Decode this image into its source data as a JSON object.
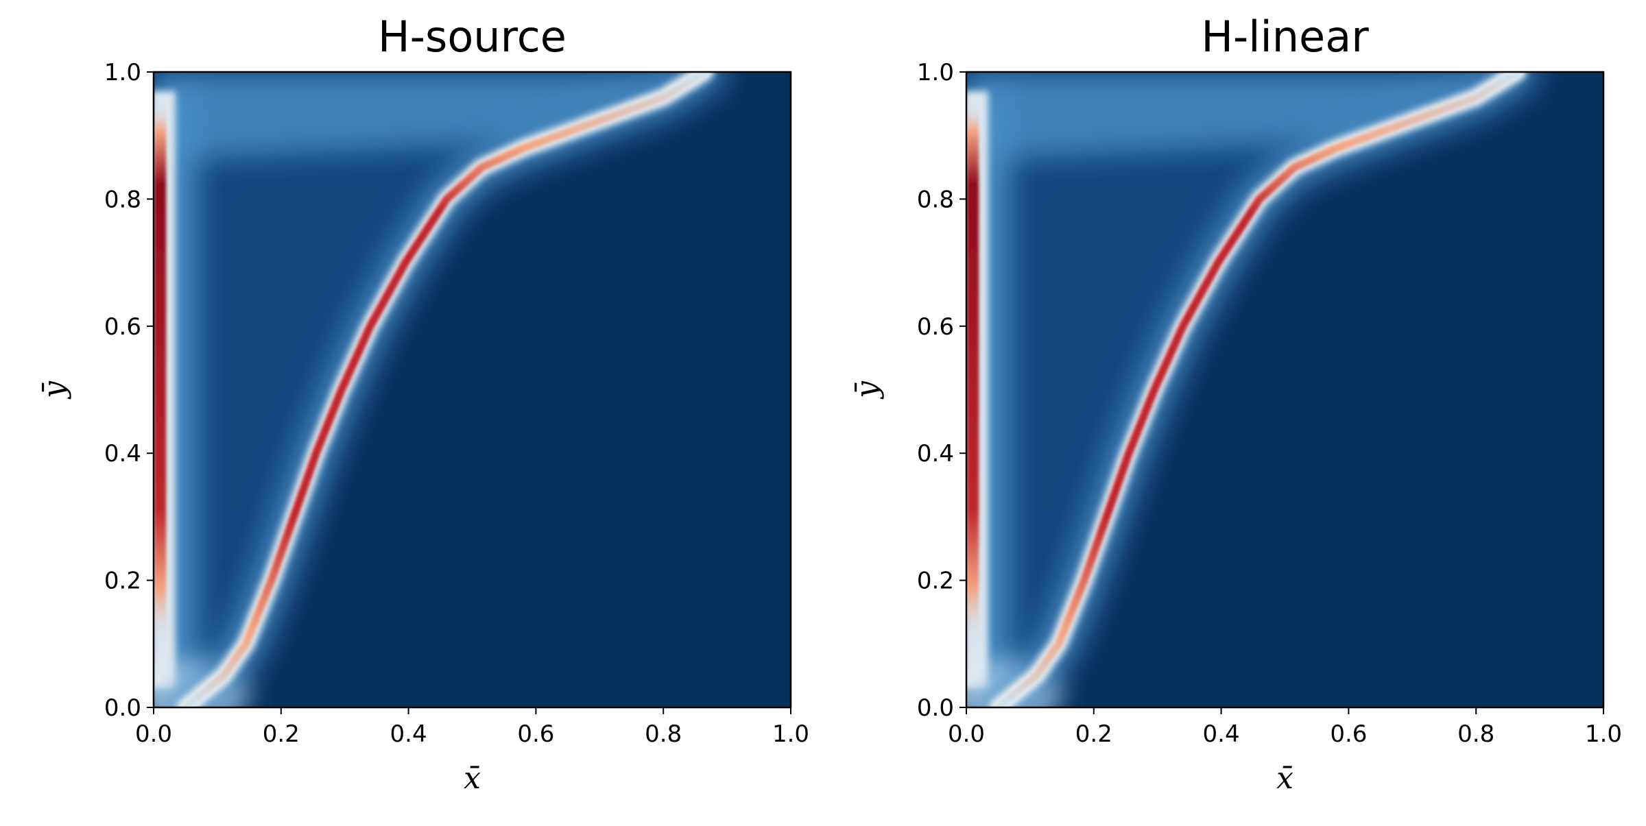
{
  "colors": {
    "background_field": "#08305e",
    "plume_dark": "#1b5a9c",
    "plume_mid": "#4a90c8",
    "plume_light": "#cde3f1",
    "ridge_white": "#f7f7f7",
    "ridge_peach": "#f4a582",
    "ridge_red": "#c0272d",
    "ridge_deep_red": "#8f0c1e"
  },
  "colormap": "RdBu_r",
  "chart_data": [
    {
      "type": "heatmap",
      "title": "H-source",
      "xlabel": "x̄",
      "ylabel": "ȳ",
      "xlim": [
        0.0,
        1.0
      ],
      "ylim": [
        0.0,
        1.0
      ],
      "xticks": [
        "0.0",
        "0.2",
        "0.4",
        "0.6",
        "0.8",
        "1.0"
      ],
      "yticks": [
        "0.0",
        "0.2",
        "0.4",
        "0.6",
        "0.8",
        "1.0"
      ],
      "grid": false,
      "features": {
        "wall_ridge_x": 0.01,
        "wall_ridge_y_range": [
          0.1,
          0.95
        ],
        "front_curve": {
          "y": [
            0.0,
            0.05,
            0.1,
            0.15,
            0.2,
            0.3,
            0.4,
            0.5,
            0.6,
            0.7,
            0.8,
            0.85,
            0.88,
            0.92,
            0.96,
            1.0
          ],
          "x": [
            0.05,
            0.11,
            0.145,
            0.165,
            0.185,
            0.22,
            0.255,
            0.295,
            0.34,
            0.395,
            0.46,
            0.515,
            0.58,
            0.69,
            0.8,
            0.865
          ]
        }
      }
    },
    {
      "type": "heatmap",
      "title": "H-linear",
      "xlabel": "x̄",
      "ylabel": "ȳ",
      "xlim": [
        0.0,
        1.0
      ],
      "ylim": [
        0.0,
        1.0
      ],
      "xticks": [
        "0.0",
        "0.2",
        "0.4",
        "0.6",
        "0.8",
        "1.0"
      ],
      "yticks": [
        "0.0",
        "0.2",
        "0.4",
        "0.6",
        "0.8",
        "1.0"
      ],
      "grid": false,
      "features": {
        "wall_ridge_x": 0.01,
        "wall_ridge_y_range": [
          0.1,
          0.95
        ],
        "front_curve": {
          "y": [
            0.0,
            0.05,
            0.1,
            0.15,
            0.2,
            0.3,
            0.4,
            0.5,
            0.6,
            0.7,
            0.8,
            0.85,
            0.88,
            0.92,
            0.96,
            1.0
          ],
          "x": [
            0.05,
            0.11,
            0.145,
            0.165,
            0.185,
            0.22,
            0.255,
            0.295,
            0.34,
            0.395,
            0.46,
            0.515,
            0.58,
            0.69,
            0.8,
            0.865
          ]
        }
      }
    }
  ]
}
